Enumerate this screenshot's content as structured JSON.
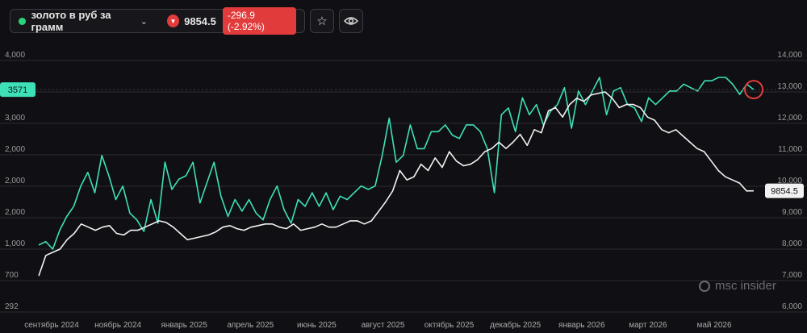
{
  "header": {
    "instrument": "золото в руб за грамм",
    "status_color": "#2bd47a",
    "price": "9854.5",
    "change": "-296.9 (-2.92%)",
    "change_color": "#e23b3b",
    "star_icon": "star-icon",
    "eye_icon": "eye-icon",
    "dropdown_icon": "chevron-down-icon",
    "direction_icon": "triangle-down-icon"
  },
  "watermark": "msc insider",
  "chart_data": {
    "type": "line",
    "left_axis": {
      "ticks": [
        "4,000",
        "3,000",
        "3,000",
        "2,000",
        "2,000",
        "2,000",
        "1,000",
        "700",
        "292"
      ]
    },
    "right_axis": {
      "ticks": [
        "14,000",
        "13,000",
        "12,000",
        "11,000",
        "10,000",
        "9,000",
        "8,000",
        "7,000",
        "6,000"
      ]
    },
    "x_ticks": [
      "сентябрь 2024",
      "ноябрь 2024",
      "январь 2025",
      "апрель 2025",
      "июнь 2025",
      "август 2025",
      "октябрь 2025",
      "декабрь 2025",
      "январь 2026",
      "март 2026",
      "май 2026"
    ],
    "grid": true,
    "series": [
      {
        "color": "#3ee0b8",
        "axis": "left",
        "last_label": "3571",
        "values": [
          1280,
          1330,
          1220,
          1500,
          1700,
          1850,
          2150,
          2350,
          2050,
          2600,
          2300,
          1950,
          2150,
          1750,
          1650,
          1480,
          1950,
          1600,
          2500,
          2100,
          2250,
          2300,
          2500,
          1900,
          2200,
          2500,
          2000,
          1700,
          1950,
          1780,
          1950,
          1750,
          1650,
          1950,
          2150,
          1800,
          1600,
          1950,
          1850,
          2050,
          1850,
          2050,
          1800,
          2000,
          1950,
          2050,
          2150,
          2100,
          2150,
          2600,
          3150,
          2500,
          2600,
          3050,
          2700,
          2700,
          2950,
          2950,
          3050,
          2900,
          2850,
          3050,
          3050,
          2950,
          2700,
          2050,
          3200,
          3300,
          2950,
          3450,
          3200,
          3350,
          3050,
          3250,
          3350,
          3600,
          3000,
          3550,
          3350,
          3550,
          3750,
          3200,
          3550,
          3600,
          3350,
          3300,
          3100,
          3450,
          3350,
          3450,
          3550,
          3550,
          3650,
          3600,
          3550,
          3700,
          3700,
          3750,
          3750,
          3650,
          3500,
          3650,
          3571
        ]
      },
      {
        "color": "#f2f2f2",
        "axis": "right",
        "last_label": "9854.5",
        "values": [
          7150,
          7800,
          7900,
          8000,
          8300,
          8500,
          8800,
          8700,
          8600,
          8700,
          8750,
          8500,
          8450,
          8600,
          8600,
          8700,
          8800,
          8900,
          8850,
          8700,
          8500,
          8300,
          8350,
          8400,
          8450,
          8550,
          8700,
          8750,
          8650,
          8600,
          8700,
          8750,
          8800,
          8800,
          8700,
          8650,
          8800,
          8600,
          8650,
          8700,
          8800,
          8700,
          8700,
          8800,
          8900,
          8900,
          8800,
          8900,
          9200,
          9500,
          9850,
          10500,
          10200,
          10300,
          10700,
          10500,
          10900,
          10600,
          11100,
          10800,
          10650,
          10700,
          10850,
          11100,
          11200,
          11400,
          11200,
          11400,
          11650,
          11300,
          11800,
          11700,
          12400,
          12500,
          12200,
          12600,
          12800,
          12700,
          12900,
          12950,
          13000,
          12800,
          12500,
          12600,
          12600,
          12500,
          12200,
          12100,
          11800,
          11700,
          11800,
          11600,
          11400,
          11200,
          11100,
          10800,
          10500,
          10300,
          10200,
          10100,
          9850,
          9854.5
        ]
      }
    ]
  }
}
